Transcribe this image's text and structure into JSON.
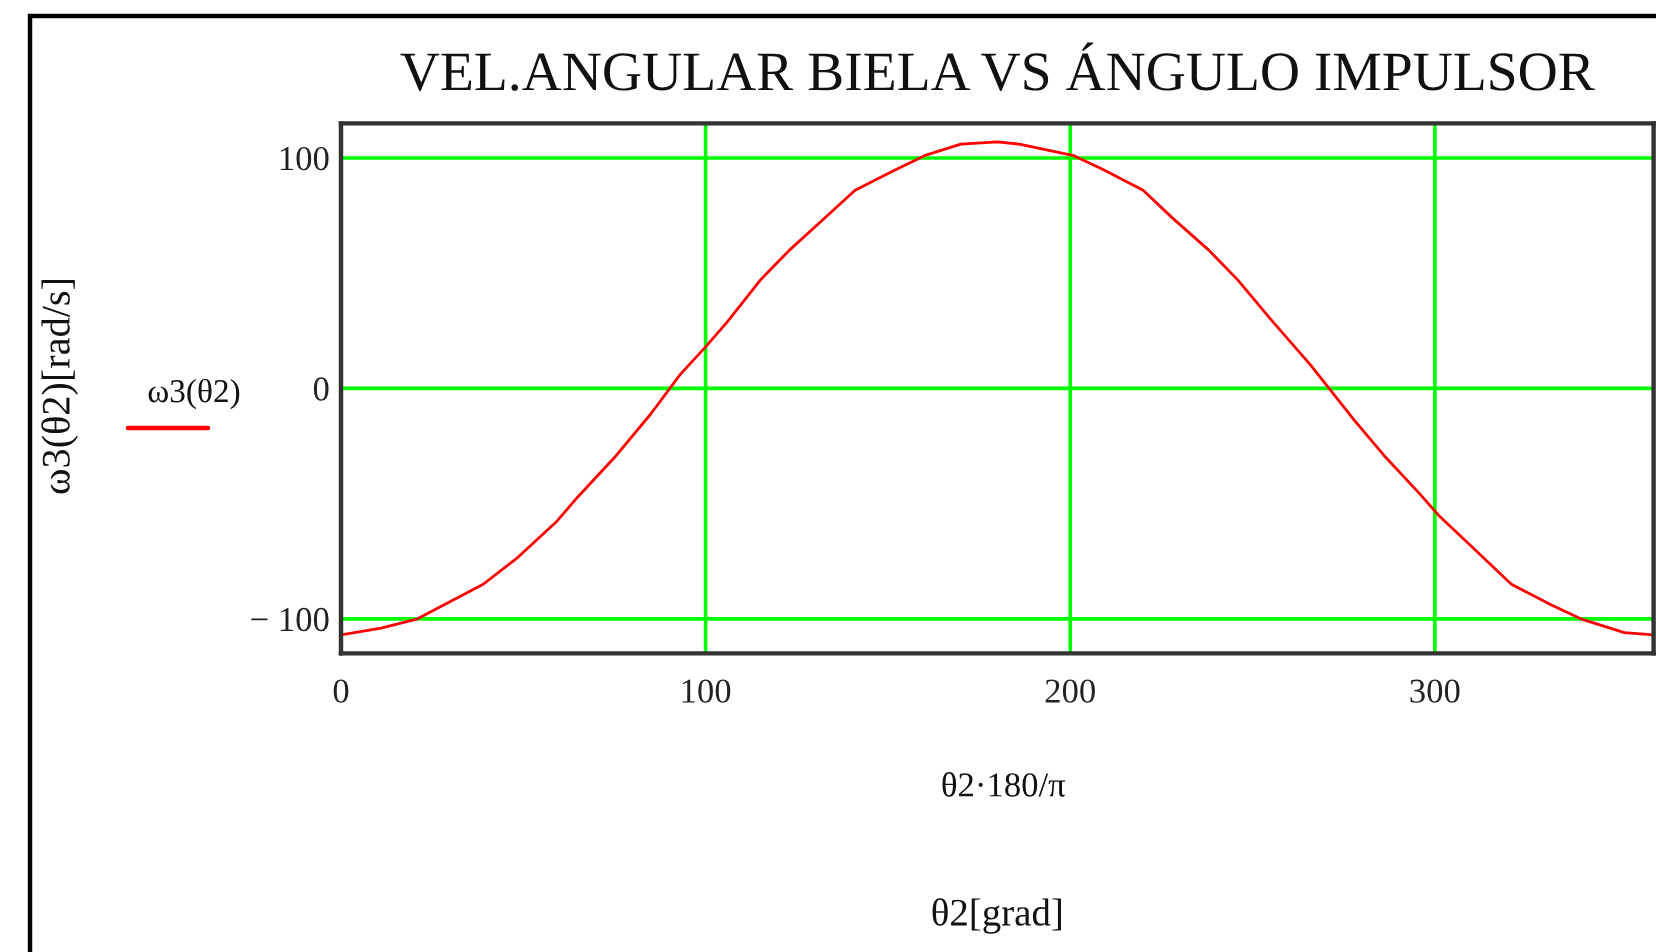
{
  "chart_data": {
    "type": "line",
    "title": "VEL.ANGULAR BIELA VS ÁNGULO IMPULSOR",
    "xlabel": "θ2·180/π",
    "ylabel": "ω3(θ2)[rad/s]",
    "annotations": [
      "θ2[grad]"
    ],
    "x": [
      0,
      11,
      21,
      39,
      48,
      59,
      65,
      75,
      85,
      93,
      100,
      106,
      115,
      123,
      132,
      141,
      151,
      160,
      170,
      180,
      186,
      201,
      209,
      220,
      228,
      238,
      246,
      255,
      266,
      271,
      278,
      286,
      296,
      301,
      309,
      321,
      332,
      340,
      352,
      360
    ],
    "series": [
      {
        "name": "ω3(θ2)",
        "color": "#ff0000",
        "values": [
          -107,
          -104,
          -100,
          -85,
          -74,
          -58,
          -47,
          -30,
          -11,
          6,
          18,
          29,
          47,
          60,
          73,
          86,
          94,
          101,
          106,
          107,
          106,
          101,
          95,
          86,
          74,
          60,
          47,
          30,
          10,
          0,
          -14,
          -29,
          -46,
          -55,
          -67,
          -85,
          -94,
          -100,
          -106,
          -107
        ]
      }
    ],
    "xlim": [
      0,
      360
    ],
    "xticks": [
      0,
      100,
      200,
      300
    ],
    "ylim": [
      -115,
      115
    ],
    "yticks": [
      {
        "value": -100,
        "label": "− 100"
      },
      0,
      100
    ],
    "grid": true,
    "legend": "left"
  }
}
